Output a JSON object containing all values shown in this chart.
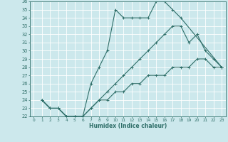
{
  "xlabel": "Humidex (Indice chaleur)",
  "bg_color": "#cce8ec",
  "grid_color": "#ffffff",
  "line_color": "#2e6e68",
  "xlim": [
    -0.5,
    23.5
  ],
  "ylim": [
    22,
    36
  ],
  "xticks": [
    0,
    1,
    2,
    3,
    4,
    5,
    6,
    7,
    8,
    9,
    10,
    11,
    12,
    13,
    14,
    15,
    16,
    17,
    18,
    19,
    20,
    21,
    22,
    23
  ],
  "yticks": [
    22,
    23,
    24,
    25,
    26,
    27,
    28,
    29,
    30,
    31,
    32,
    33,
    34,
    35,
    36
  ],
  "lines": [
    {
      "x": [
        1,
        2,
        3,
        4,
        5,
        6,
        7,
        8,
        9,
        10,
        11,
        12,
        13,
        14,
        15,
        16,
        17,
        18,
        23
      ],
      "y": [
        24,
        23,
        23,
        22,
        22,
        22,
        26,
        28,
        30,
        35,
        34,
        34,
        34,
        34,
        36,
        36,
        35,
        34,
        28
      ]
    },
    {
      "x": [
        1,
        2,
        3,
        4,
        5,
        6,
        7,
        8,
        9,
        10,
        11,
        12,
        13,
        14,
        15,
        16,
        17,
        18,
        19,
        20,
        21,
        22,
        23
      ],
      "y": [
        24,
        23,
        23,
        22,
        22,
        22,
        23,
        24,
        25,
        26,
        27,
        28,
        29,
        30,
        31,
        32,
        33,
        33,
        31,
        32,
        30,
        29,
        28
      ]
    },
    {
      "x": [
        1,
        2,
        3,
        4,
        5,
        6,
        7,
        8,
        9,
        10,
        11,
        12,
        13,
        14,
        15,
        16,
        17,
        18,
        19,
        20,
        21,
        22,
        23
      ],
      "y": [
        24,
        23,
        23,
        22,
        22,
        22,
        23,
        24,
        24,
        25,
        25,
        26,
        26,
        27,
        27,
        27,
        28,
        28,
        28,
        29,
        29,
        28,
        28
      ]
    }
  ]
}
